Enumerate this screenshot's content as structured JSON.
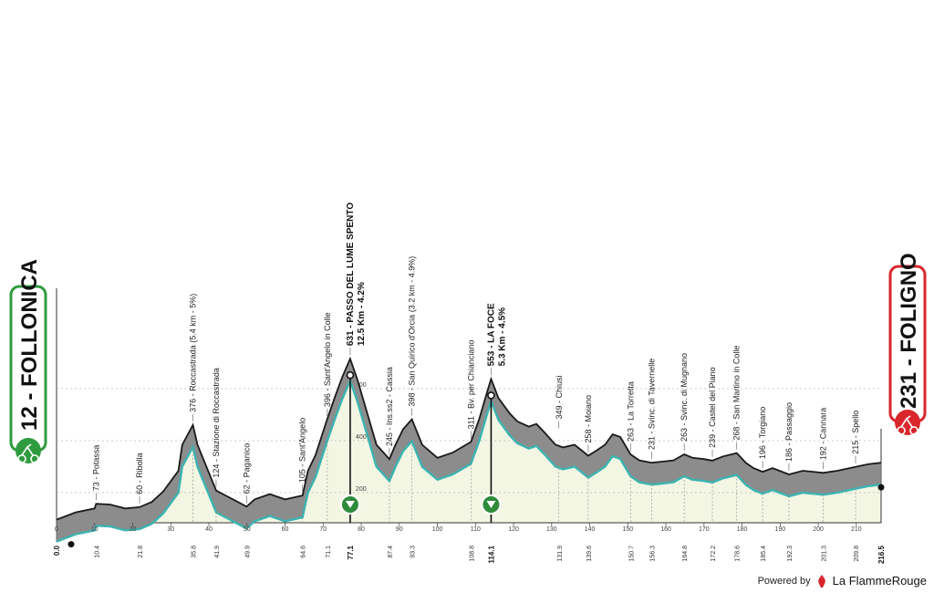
{
  "colors": {
    "profile_fill": "#f4f6e4",
    "ribbon": "#8c8c8c",
    "ribbon_dark": "#5a5a5a",
    "trace": "#3bb4b1",
    "start_accent": "#2e9b3f",
    "finish_accent": "#d8262c",
    "kom": "#2e8b3a"
  },
  "start": {
    "name": "FOLLONICA",
    "altitude": "12",
    "label": "12 - FOLLONICA"
  },
  "finish": {
    "name": "FOLIGNO",
    "altitude": "231",
    "label": "231 - FOLIGNO"
  },
  "footer": {
    "powered_by": "Powered by",
    "brand": "La FlammeRouge"
  },
  "chart_data": {
    "type": "area",
    "xlabel": "",
    "ylabel": "",
    "xlim": [
      0,
      216.5
    ],
    "ylim": [
      0,
      800
    ],
    "y_ticks": [
      200,
      400,
      600
    ],
    "x_ticks": [
      0,
      10,
      20,
      30,
      40,
      50,
      60,
      70,
      80,
      90,
      100,
      110,
      120,
      130,
      140,
      150,
      160,
      170,
      180,
      190,
      200,
      210
    ],
    "grid": true,
    "profile": [
      [
        0,
        12
      ],
      [
        5,
        40
      ],
      [
        10,
        55
      ],
      [
        10.4,
        73
      ],
      [
        14,
        70
      ],
      [
        18,
        55
      ],
      [
        21.8,
        60
      ],
      [
        25,
        80
      ],
      [
        28,
        120
      ],
      [
        32,
        200
      ],
      [
        33,
        300
      ],
      [
        35.8,
        376
      ],
      [
        37,
        300
      ],
      [
        41.9,
        124
      ],
      [
        45,
        100
      ],
      [
        49.9,
        62
      ],
      [
        52,
        90
      ],
      [
        56,
        110
      ],
      [
        60,
        90
      ],
      [
        64.6,
        105
      ],
      [
        66,
        200
      ],
      [
        68,
        260
      ],
      [
        71,
        396
      ],
      [
        73,
        480
      ],
      [
        75,
        560
      ],
      [
        77.1,
        631
      ],
      [
        79,
        550
      ],
      [
        82,
        400
      ],
      [
        84,
        300
      ],
      [
        87.4,
        245
      ],
      [
        89,
        300
      ],
      [
        91,
        360
      ],
      [
        93.3,
        398
      ],
      [
        96,
        300
      ],
      [
        100,
        250
      ],
      [
        104,
        270
      ],
      [
        108.8,
        311
      ],
      [
        111,
        400
      ],
      [
        113,
        500
      ],
      [
        114.1,
        553
      ],
      [
        116,
        480
      ],
      [
        119,
        420
      ],
      [
        121,
        390
      ],
      [
        124,
        370
      ],
      [
        126,
        380
      ],
      [
        128,
        349
      ],
      [
        131,
        300
      ],
      [
        133,
        290
      ],
      [
        136,
        300
      ],
      [
        139.6,
        258
      ],
      [
        142,
        280
      ],
      [
        144,
        300
      ],
      [
        146,
        340
      ],
      [
        148,
        330
      ],
      [
        150.7,
        263
      ],
      [
        153,
        240
      ],
      [
        156.3,
        231
      ],
      [
        159,
        235
      ],
      [
        162,
        240
      ],
      [
        164.8,
        263
      ],
      [
        167,
        250
      ],
      [
        170,
        245
      ],
      [
        172.2,
        239
      ],
      [
        175,
        255
      ],
      [
        178.6,
        268
      ],
      [
        181,
        230
      ],
      [
        183,
        210
      ],
      [
        185.4,
        196
      ],
      [
        188,
        210
      ],
      [
        192.3,
        186
      ],
      [
        196,
        200
      ],
      [
        201.3,
        192
      ],
      [
        205,
        200
      ],
      [
        209.8,
        215
      ],
      [
        213,
        225
      ],
      [
        216.5,
        231
      ]
    ],
    "points": [
      {
        "km": "0.0",
        "x": 0,
        "name": "FOLLONICA",
        "altitude": 12,
        "bold": true
      },
      {
        "km": "10.4",
        "x": 10.4,
        "label": "73 - Potassa",
        "altitude": 73
      },
      {
        "km": "21.8",
        "x": 21.8,
        "label": "60 - Ribolla",
        "altitude": 60
      },
      {
        "km": "35.8",
        "x": 35.8,
        "label": "376 - Roccastrada (5.4 km - 5%)",
        "altitude": 376
      },
      {
        "km": "41.9",
        "x": 41.9,
        "label": "124 - Stazione di Roccastrada",
        "altitude": 124
      },
      {
        "km": "49.9",
        "x": 49.9,
        "label": "62 - Paganico",
        "altitude": 62
      },
      {
        "km": "64.6",
        "x": 64.6,
        "label": "105 - Sant'Angelo",
        "altitude": 105
      },
      {
        "km": "71.1",
        "x": 71.1,
        "label": "396 - Sant'Angelo in Colle",
        "altitude": 396
      },
      {
        "km": "77.1",
        "x": 77.1,
        "label": "631 - PASSO DEL LUME SPENTO",
        "sub": "12.5 Km - 4.2%",
        "altitude": 631,
        "bold": true,
        "kom": true
      },
      {
        "km": "87.4",
        "x": 87.4,
        "label": "245 - Ins.ss2 - Cassia",
        "altitude": 245
      },
      {
        "km": "93.3",
        "x": 93.3,
        "label": "398 - San Quirico d'Orcia (3.2 km - 4.9%)",
        "altitude": 398
      },
      {
        "km": "108.8",
        "x": 108.8,
        "label": "311 - Bv. per Chianciano",
        "altitude": 311
      },
      {
        "km": "114.1",
        "x": 114.1,
        "label": "553 - LA FOCE",
        "sub": "5.3 Km - 4.5%",
        "altitude": 553,
        "bold": true,
        "kom": true
      },
      {
        "km": "131.9",
        "x": 131.9,
        "label": "349 - Chiusi",
        "altitude": 349
      },
      {
        "km": "139.6",
        "x": 139.6,
        "label": "258 - Moiano",
        "altitude": 258
      },
      {
        "km": "150.7",
        "x": 150.7,
        "label": "263 - La Torretta",
        "altitude": 263
      },
      {
        "km": "156.3",
        "x": 156.3,
        "label": "231 - Svinc. di Tavernelle",
        "altitude": 231
      },
      {
        "km": "164.8",
        "x": 164.8,
        "label": "263 - Svinc. di Mugnano",
        "altitude": 263
      },
      {
        "km": "172.2",
        "x": 172.2,
        "label": "239 - Castel del Piano",
        "altitude": 239
      },
      {
        "km": "178.6",
        "x": 178.6,
        "label": "268 - San Martino in Colle",
        "altitude": 268
      },
      {
        "km": "185.4",
        "x": 185.4,
        "label": "196 - Torgiano",
        "altitude": 196
      },
      {
        "km": "192.3",
        "x": 192.3,
        "label": "186 - Passaggio",
        "altitude": 186
      },
      {
        "km": "201.3",
        "x": 201.3,
        "label": "192 - Cannara",
        "altitude": 192
      },
      {
        "km": "209.8",
        "x": 209.8,
        "label": "215 - Spello",
        "altitude": 215
      },
      {
        "km": "216.5",
        "x": 216.5,
        "name": "FOLIGNO",
        "altitude": 231,
        "bold": true
      }
    ]
  }
}
